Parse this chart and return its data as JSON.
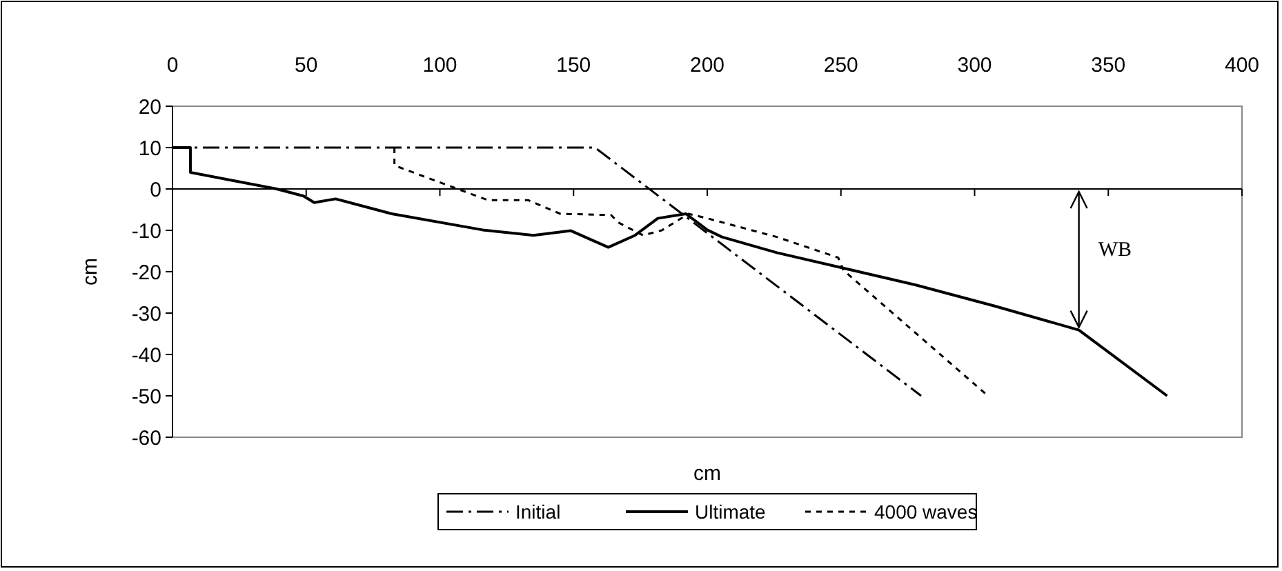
{
  "chart_data": {
    "type": "line",
    "xlabel": "cm",
    "ylabel": "cm",
    "xlim": [
      0,
      400
    ],
    "ylim": [
      -60,
      20
    ],
    "xticks": [
      0,
      50,
      100,
      150,
      200,
      250,
      300,
      350,
      400
    ],
    "yticks": [
      20,
      10,
      0,
      -10,
      -20,
      -30,
      -40,
      -50,
      -60
    ],
    "legend": "bottom",
    "marker": "none",
    "annotations": [
      "WB"
    ],
    "series": [
      {
        "name": "Initial",
        "color": "#000000",
        "line_style": "dashed",
        "x": [
          0,
          158,
          280
        ],
        "values": [
          10,
          10,
          -50
        ]
      },
      {
        "name": "Ultimate",
        "color": "#000000",
        "line_style": "solid",
        "x": [
          0,
          6.7,
          6.7,
          39,
          49,
          53,
          61,
          82,
          116,
          135,
          149,
          163,
          173,
          181.5,
          192,
          200,
          205.5,
          226,
          252,
          278,
          307,
          339,
          372
        ],
        "values": [
          10,
          10,
          4,
          0,
          -1.7,
          -3.3,
          -2.4,
          -6,
          -9.9,
          -11.2,
          -10.1,
          -14.1,
          -11.2,
          -7.1,
          -6,
          -9.9,
          -11.6,
          -15.4,
          -19.3,
          -23.2,
          -28.2,
          -34.1,
          -50
        ]
      },
      {
        "name": "4000 waves",
        "color": "#000000",
        "line_style": "dotted",
        "x": [
          83,
          83,
          97,
          118,
          133,
          145,
          164,
          167,
          176,
          183,
          193,
          200,
          226,
          249,
          251,
          305
        ],
        "values": [
          10,
          5.7,
          2.3,
          -2.7,
          -2.7,
          -6,
          -6.3,
          -8.2,
          -11.2,
          -10,
          -6,
          -7.1,
          -11.6,
          -16.6,
          -19.7,
          -50
        ]
      }
    ]
  }
}
